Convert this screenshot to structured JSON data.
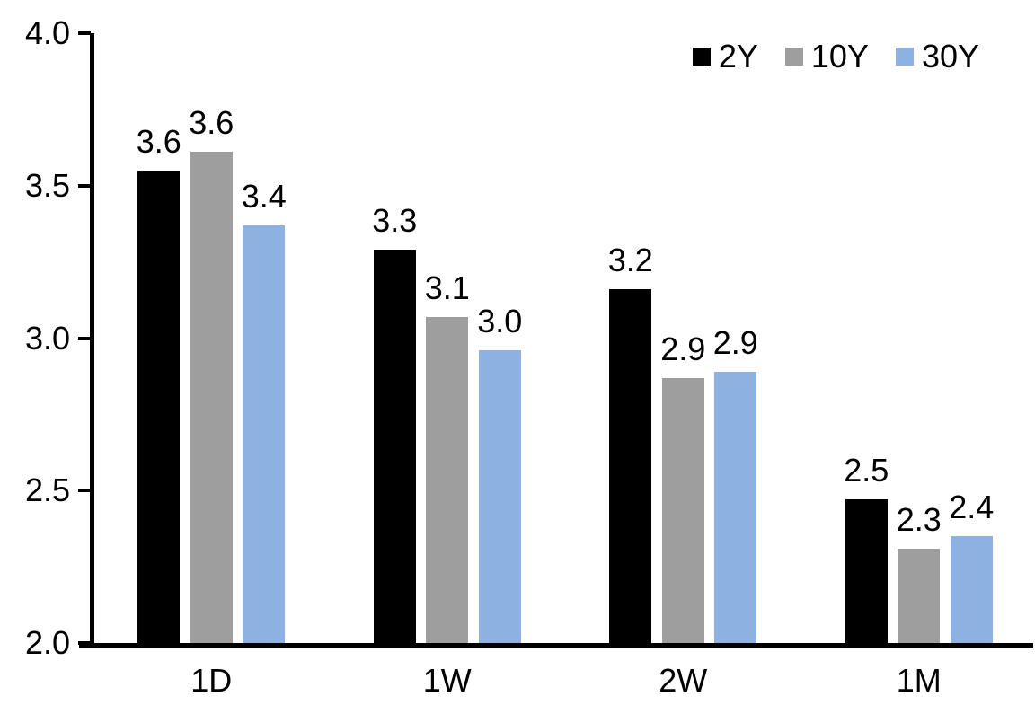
{
  "chart_data": {
    "type": "bar",
    "title": "",
    "xlabel": "",
    "ylabel": "",
    "categories": [
      "1D",
      "1W",
      "2W",
      "1M"
    ],
    "series": [
      {
        "name": "2Y",
        "color": "#000000",
        "values": [
          3.55,
          3.29,
          3.16,
          2.47
        ],
        "labels": [
          "3.6",
          "3.3",
          "3.2",
          "2.5"
        ]
      },
      {
        "name": "10Y",
        "color": "#9E9E9E",
        "values": [
          3.61,
          3.07,
          2.87,
          2.31
        ],
        "labels": [
          "3.6",
          "3.1",
          "2.9",
          "2.3"
        ]
      },
      {
        "name": "30Y",
        "color": "#8DB1E0",
        "values": [
          3.37,
          2.96,
          2.89,
          2.35
        ],
        "labels": [
          "3.4",
          "3.0",
          "2.9",
          "2.4"
        ]
      }
    ],
    "ylim": [
      2.0,
      4.0
    ],
    "ytick_step": 0.5,
    "ytick_labels": [
      "2.0",
      "2.5",
      "3.0",
      "3.5",
      "4.0"
    ],
    "grid": false,
    "legend_position": "top-right",
    "axis_color": "#000000",
    "label_color": "#000000",
    "background": "#FFFFFF"
  }
}
